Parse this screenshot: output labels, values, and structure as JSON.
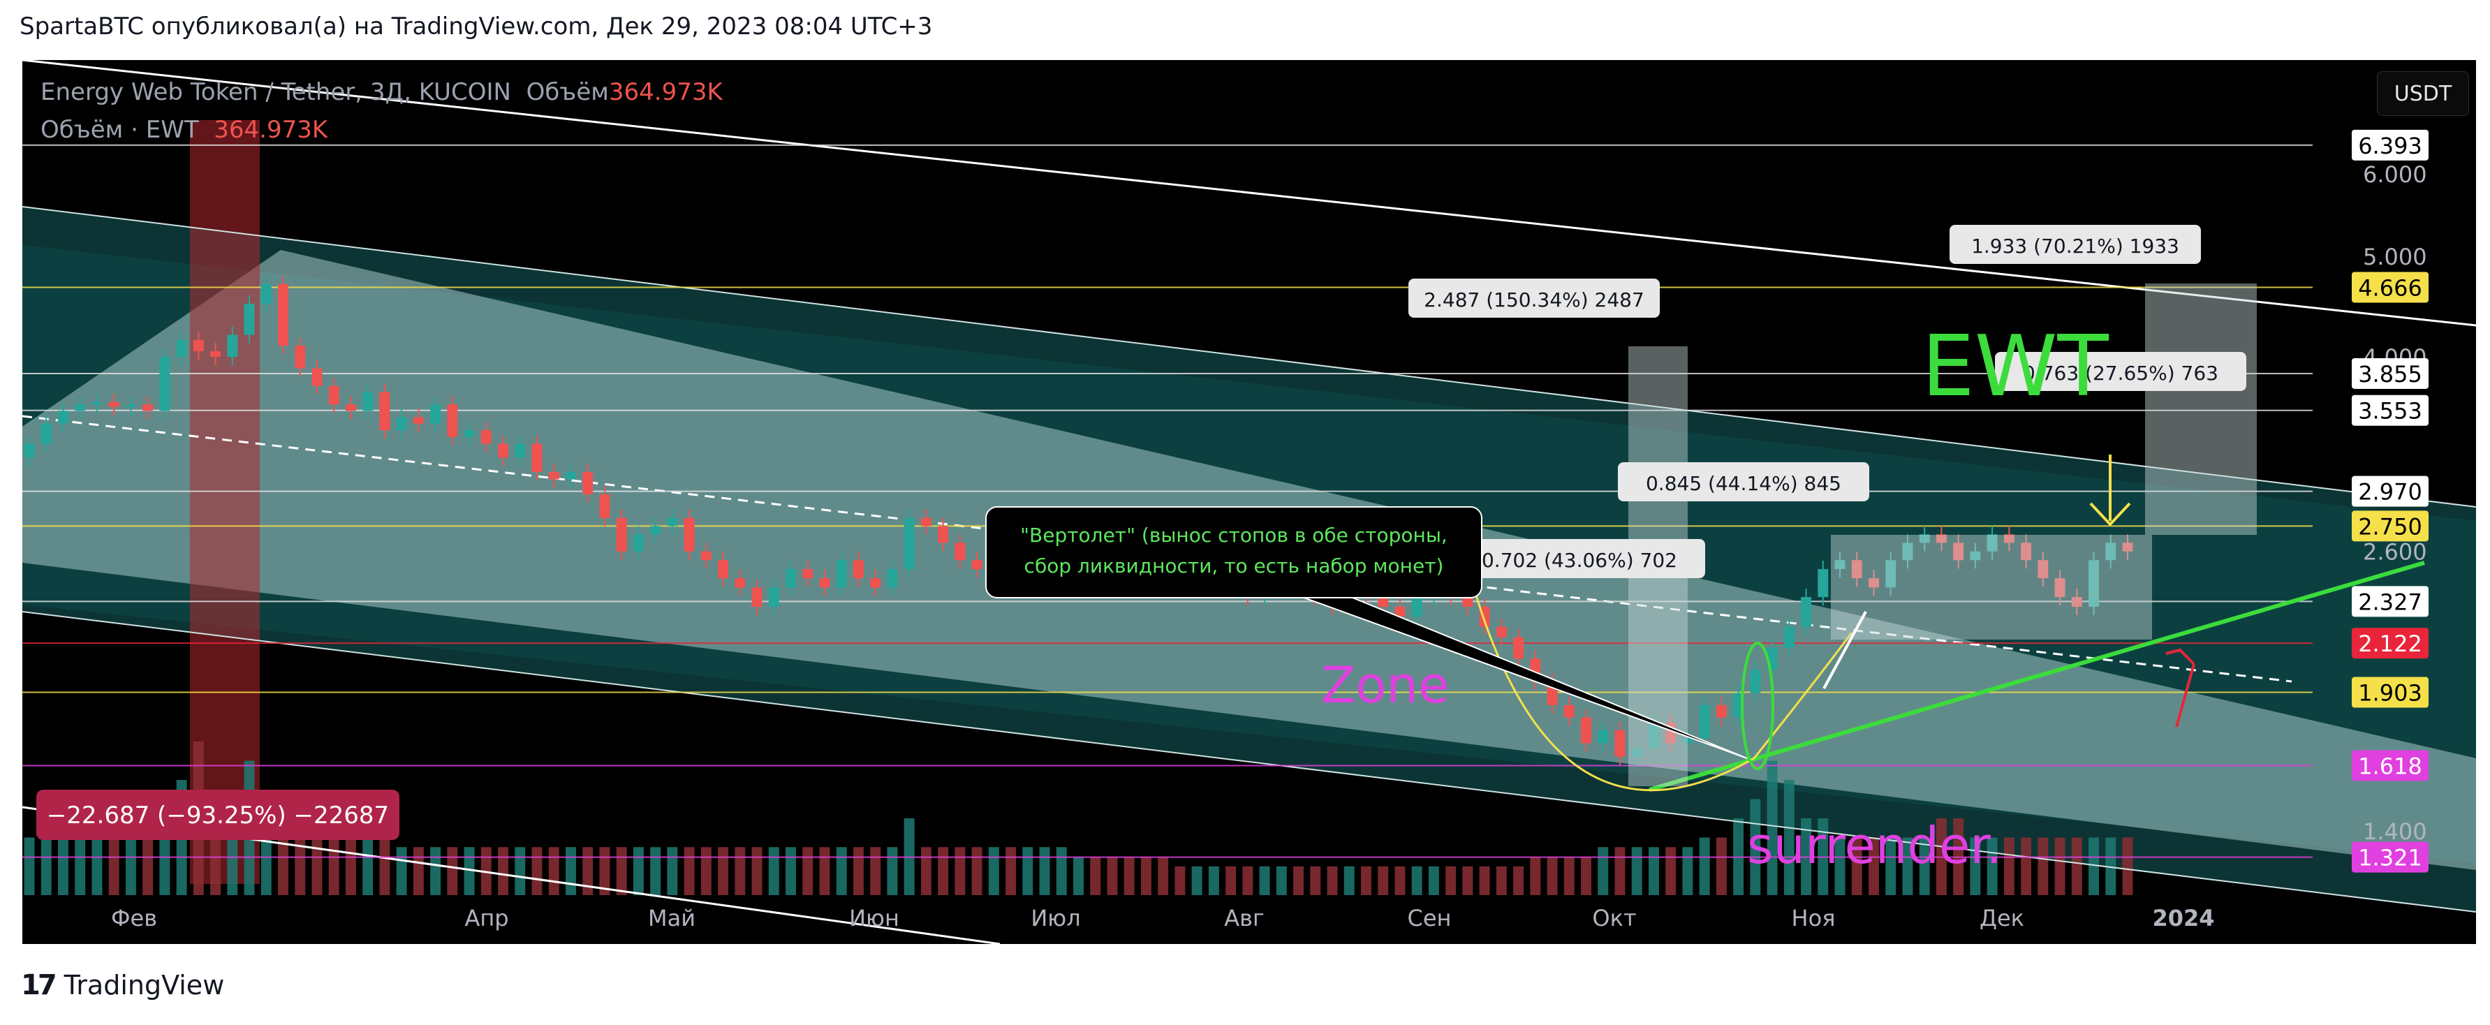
{
  "header": {
    "text": "SpartaBTC опубликовал(а) на TradingView.com, Дек 29, 2023 08:04 UTC+3"
  },
  "legend": {
    "symbol_line": "Energy Web Token / Tether, 3Д, KUCOIN",
    "volume_label": "Объём",
    "volume_value": "364.973K",
    "volume_line_label": "Объём · EWT",
    "volume_line_value": "364.973K"
  },
  "currency_button": "USDT",
  "footer": {
    "logo": "17",
    "brand": "TradingView"
  },
  "colors": {
    "up": "#26a69a",
    "down": "#ef5350",
    "background": "#000000",
    "channel": "#b2d8d8",
    "trend_green": "#3cdc3c",
    "level_yellow": "#f5e04a",
    "magenta": "#e040e0"
  },
  "chart_data": {
    "type": "candlestick",
    "symbol": "EWT/USDT",
    "timeframe": "3Д",
    "exchange": "KUCOIN",
    "y_axis": {
      "scale": "log",
      "ticks": [
        "6.000",
        "5.000",
        "4.000",
        "2.600",
        "1.400"
      ],
      "range": [
        1.1,
        7.6
      ]
    },
    "x_axis": {
      "ticks": [
        "Фев",
        "Апр",
        "Май",
        "Июн",
        "Июл",
        "Авг",
        "Сен",
        "Окт",
        "Ноя",
        "Дек",
        "2024"
      ]
    },
    "price_badges": [
      {
        "label": "6.393",
        "value": 6.393,
        "bg": "#ffffff",
        "fg": "#000000"
      },
      {
        "label": "4.666",
        "value": 4.666,
        "bg": "#f5e04a",
        "fg": "#000000"
      },
      {
        "label": "3.855",
        "value": 3.855,
        "bg": "#ffffff",
        "fg": "#000000"
      },
      {
        "label": "3.553",
        "value": 3.553,
        "bg": "#ffffff",
        "fg": "#000000"
      },
      {
        "label": "2.970",
        "value": 2.97,
        "bg": "#ffffff",
        "fg": "#000000"
      },
      {
        "label": "2.750",
        "value": 2.75,
        "bg": "#f5e04a",
        "fg": "#000000"
      },
      {
        "label": "2.327",
        "value": 2.327,
        "bg": "#ffffff",
        "fg": "#000000"
      },
      {
        "label": "2.122",
        "value": 2.122,
        "bg": "#e8253a",
        "fg": "#ffffff"
      },
      {
        "label": "1.903",
        "value": 1.903,
        "bg": "#f5e04a",
        "fg": "#000000"
      },
      {
        "label": "1.618",
        "value": 1.618,
        "bg": "#e040e0",
        "fg": "#ffffff"
      },
      {
        "label": "1.321",
        "value": 1.321,
        "bg": "#e040e0",
        "fg": "#ffffff"
      }
    ],
    "measure_labels": [
      "2.487 (150.34%) 2487",
      "1.933 (70.21%) 1933",
      "0.763 (27.65%) 763",
      "0.845 (44.14%) 845",
      "0.702 (43.06%) 702"
    ],
    "drop_label": "−22.687 (−93.25%) −22687",
    "callout": "\"Вертолет\" (вынос стопов в обе стороны,\nсбор ликвидности, то есть набор монет)",
    "annotations": {
      "ewt": "EWT",
      "zone": "Zone",
      "surrender": "surrender."
    },
    "closes": [
      3.3,
      3.45,
      3.55,
      3.6,
      3.62,
      3.58,
      3.6,
      3.55,
      4.0,
      4.15,
      4.05,
      4.0,
      4.2,
      4.5,
      4.7,
      4.1,
      3.9,
      3.75,
      3.6,
      3.55,
      3.7,
      3.4,
      3.5,
      3.45,
      3.6,
      3.35,
      3.4,
      3.3,
      3.2,
      3.3,
      3.1,
      3.05,
      3.1,
      2.95,
      2.8,
      2.6,
      2.7,
      2.75,
      2.8,
      2.6,
      2.55,
      2.45,
      2.4,
      2.3,
      2.4,
      2.5,
      2.45,
      2.4,
      2.55,
      2.45,
      2.4,
      2.5,
      2.8,
      2.75,
      2.65,
      2.55,
      2.5,
      2.6,
      2.45,
      2.5,
      2.55,
      2.65,
      2.8,
      2.7,
      2.6,
      2.55,
      2.5,
      2.45,
      2.4,
      2.45,
      2.5,
      2.4,
      2.35,
      2.38,
      2.42,
      2.4,
      2.35,
      2.3,
      2.4,
      2.35,
      2.3,
      2.25,
      2.35,
      2.4,
      2.35,
      2.3,
      2.2,
      2.15,
      2.05,
      1.95,
      1.85,
      1.8,
      1.7,
      1.75,
      1.65,
      1.68,
      1.78,
      1.7,
      1.72,
      1.85,
      1.8,
      1.9,
      2.0,
      2.1,
      2.2,
      2.35,
      2.5,
      2.55,
      2.45,
      2.4,
      2.55,
      2.65,
      2.7,
      2.65,
      2.55,
      2.6,
      2.7,
      2.65,
      2.55,
      2.45,
      2.35,
      2.3,
      2.55,
      2.65,
      2.6
    ],
    "volumes": [
      3,
      3,
      3,
      3,
      3,
      3,
      3,
      3,
      3,
      6,
      8,
      5,
      5,
      7,
      5,
      4,
      3,
      3,
      3,
      3,
      3,
      3,
      2.5,
      2.5,
      2.5,
      2.5,
      2.5,
      2.5,
      2.5,
      2.5,
      2.5,
      2.5,
      2.5,
      2.5,
      2.5,
      2.5,
      2.5,
      2.5,
      2.5,
      2.5,
      2.5,
      2.5,
      2.5,
      2.5,
      2.5,
      2.5,
      2.5,
      2.5,
      2.5,
      2.5,
      2.5,
      2.5,
      4,
      2.5,
      2.5,
      2.5,
      2.5,
      2.5,
      2.5,
      2.5,
      2.5,
      2.5,
      2,
      2,
      2,
      2,
      2,
      2,
      1.5,
      1.5,
      1.5,
      1.5,
      1.5,
      1.5,
      1.5,
      1.5,
      1.5,
      1.5,
      1.5,
      1.5,
      1.5,
      1.5,
      1.5,
      1.5,
      1.5,
      1.5,
      1.5,
      1.5,
      1.5,
      2,
      2,
      2,
      2,
      2.5,
      2.5,
      2.5,
      2.5,
      2.5,
      2.5,
      3,
      3,
      4,
      5,
      7,
      6,
      4,
      4,
      3,
      3,
      3,
      3,
      3,
      3,
      4,
      4,
      3,
      3,
      3,
      3,
      3,
      3,
      3,
      3,
      3,
      3
    ]
  }
}
